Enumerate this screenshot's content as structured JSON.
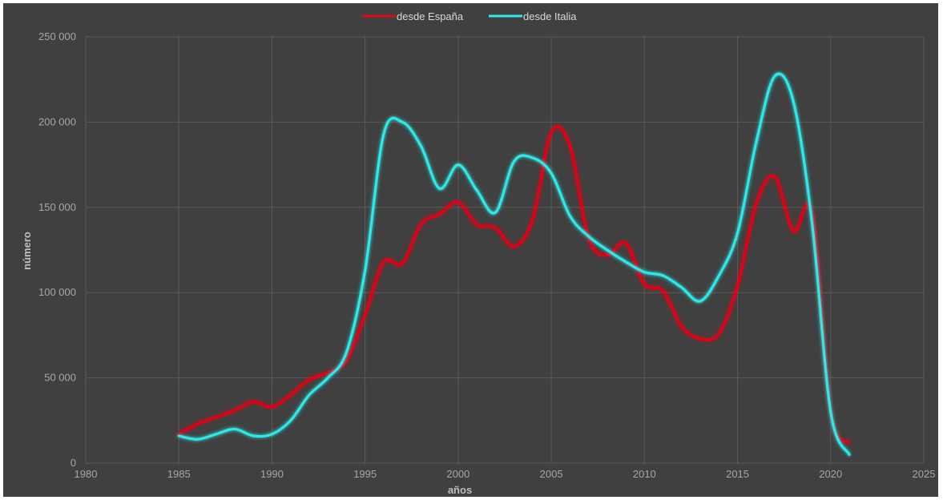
{
  "chart_data": {
    "type": "line",
    "title": "",
    "xlabel": "años",
    "ylabel": "número",
    "xlim": [
      1980,
      2025
    ],
    "ylim": [
      0,
      250000
    ],
    "x_ticks": [
      1980,
      1985,
      1990,
      1995,
      2000,
      2005,
      2010,
      2015,
      2020,
      2025
    ],
    "x_tick_labels": [
      "1980",
      "1985",
      "1990",
      "1995",
      "2000",
      "2005",
      "2010",
      "2015",
      "2020",
      "2025"
    ],
    "y_ticks": [
      0,
      50000,
      100000,
      150000,
      200000,
      250000
    ],
    "y_tick_labels": [
      "0",
      "50 000",
      "100 000",
      "150 000",
      "200 000",
      "250 000"
    ],
    "grid": true,
    "legend_position": "top-center",
    "background_color": "#404040",
    "series": [
      {
        "name": "desde España",
        "color": "#e30613",
        "x": [
          1985,
          1986,
          1987,
          1988,
          1989,
          1990,
          1991,
          1992,
          1993,
          1994,
          1995,
          1996,
          1997,
          1998,
          1999,
          2000,
          2001,
          2002,
          2003,
          2004,
          2005,
          2006,
          2007,
          2008,
          2009,
          2010,
          2011,
          2012,
          2013,
          2014,
          2015,
          2016,
          2017,
          2018,
          2019,
          2020,
          2021
        ],
        "y": [
          17000,
          23000,
          27000,
          31000,
          36000,
          33000,
          40000,
          49000,
          53000,
          60000,
          87000,
          118000,
          117000,
          140000,
          146000,
          153000,
          140000,
          138000,
          127000,
          143000,
          194000,
          186000,
          132000,
          122000,
          129000,
          105000,
          101000,
          80000,
          73000,
          76000,
          104000,
          152000,
          168000,
          136000,
          147000,
          30000,
          12000
        ]
      },
      {
        "name": "desde Italia",
        "color": "#2ee8e8",
        "x": [
          1985,
          1986,
          1987,
          1988,
          1989,
          1990,
          1991,
          1992,
          1993,
          1994,
          1995,
          1996,
          1997,
          1998,
          1999,
          2000,
          2001,
          2002,
          2003,
          2004,
          2005,
          2006,
          2007,
          2008,
          2009,
          2010,
          2011,
          2012,
          2013,
          2014,
          2015,
          2016,
          2017,
          2018,
          2019,
          2020,
          2021
        ],
        "y": [
          16000,
          14000,
          17000,
          20000,
          16000,
          17000,
          25000,
          40000,
          50000,
          65000,
          113000,
          193000,
          200000,
          186000,
          161000,
          175000,
          160000,
          147000,
          177000,
          179000,
          170000,
          145000,
          133000,
          125000,
          118000,
          112000,
          110000,
          103000,
          95000,
          110000,
          135000,
          188000,
          227000,
          212000,
          141000,
          30000,
          5000
        ]
      }
    ]
  }
}
